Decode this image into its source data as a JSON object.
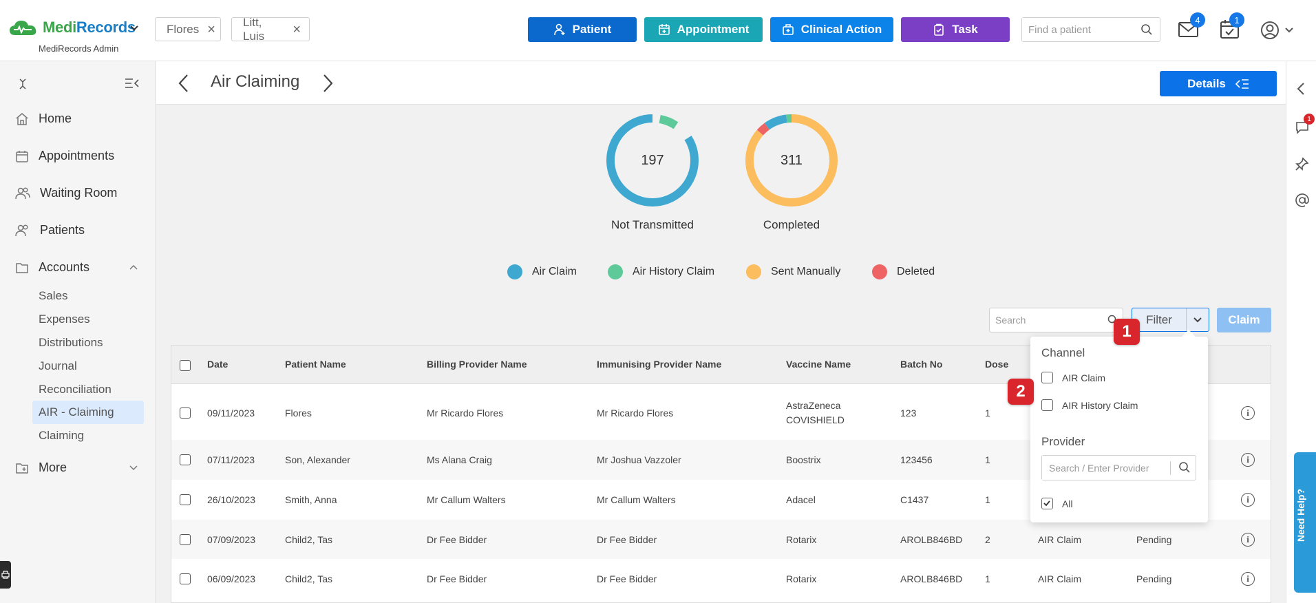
{
  "app": {
    "logo_prefix": "Medi",
    "logo_suffix": "Records",
    "subtitle": "MediRecords Admin"
  },
  "patient_tabs": [
    {
      "label": "Flores"
    },
    {
      "label": "Litt, Luis"
    }
  ],
  "header_buttons": {
    "patient": "Patient",
    "appointment": "Appointment",
    "clinical_action": "Clinical Action",
    "task": "Task"
  },
  "find_patient": {
    "placeholder": "Find a patient",
    "value": ""
  },
  "notifications": {
    "mail_count": "4",
    "calendar_count": "1"
  },
  "sidebar": {
    "items": [
      {
        "label": "Home"
      },
      {
        "label": "Appointments"
      },
      {
        "label": "Waiting Room"
      },
      {
        "label": "Patients"
      },
      {
        "label": "Accounts"
      }
    ],
    "accounts_sub": [
      {
        "label": "Sales"
      },
      {
        "label": "Expenses"
      },
      {
        "label": "Distributions"
      },
      {
        "label": "Journal"
      },
      {
        "label": "Reconciliation"
      },
      {
        "label": "AIR - Claiming"
      },
      {
        "label": "Claiming"
      }
    ],
    "more_label": "More"
  },
  "page": {
    "title": "Air Claiming",
    "details_label": "Details"
  },
  "summary": {
    "not_transmitted": {
      "count": "197",
      "label": "Not Transmitted"
    },
    "completed": {
      "count": "311",
      "label": "Completed"
    }
  },
  "chart_data": [
    {
      "type": "pie",
      "title": "Not Transmitted",
      "total": 197,
      "categories": [
        "Air Claim",
        "Air History Claim"
      ],
      "values": [
        184,
        13
      ]
    },
    {
      "type": "pie",
      "title": "Completed",
      "total": 311,
      "categories": [
        "Sent Manually",
        "Deleted",
        "Air Claim",
        "Air History Claim"
      ],
      "values": [
        269,
        11,
        25,
        6
      ]
    }
  ],
  "legend": [
    {
      "label": "Air Claim",
      "color": "#3fa8d0"
    },
    {
      "label": "Air History Claim",
      "color": "#5ec999"
    },
    {
      "label": "Sent Manually",
      "color": "#fbbd5e"
    },
    {
      "label": "Deleted",
      "color": "#ee6464"
    }
  ],
  "toolbar": {
    "search_placeholder": "Search",
    "filter_label": "Filter",
    "claim_label": "Claim"
  },
  "table": {
    "headers": {
      "date": "Date",
      "patient": "Patient Name",
      "billing": "Billing Provider Name",
      "immunising": "Immunising Provider Name",
      "vaccine": "Vaccine Name",
      "batch": "Batch No",
      "dose": "Dose"
    },
    "rows": [
      {
        "date": "09/11/2023",
        "patient": "Flores",
        "billing": "Mr Ricardo Flores",
        "immunising": "Mr Ricardo Flores",
        "vaccine_line1": "AstraZeneca",
        "vaccine_line2": "COVISHIELD",
        "batch": "123",
        "dose": "1",
        "channel": "",
        "status": ""
      },
      {
        "date": "07/11/2023",
        "patient": "Son, Alexander",
        "billing": "Ms Alana Craig",
        "immunising": "Mr Joshua Vazzoler",
        "vaccine_line1": "Boostrix",
        "vaccine_line2": "",
        "batch": "123456",
        "dose": "1",
        "channel": "",
        "status": ""
      },
      {
        "date": "26/10/2023",
        "patient": "Smith, Anna",
        "billing": "Mr Callum Walters",
        "immunising": "Mr Callum Walters",
        "vaccine_line1": "Adacel",
        "vaccine_line2": "",
        "batch": "C1437",
        "dose": "1",
        "channel": "",
        "status": ""
      },
      {
        "date": "07/09/2023",
        "patient": "Child2, Tas",
        "billing": "Dr Fee Bidder",
        "immunising": "Dr Fee Bidder",
        "vaccine_line1": "Rotarix",
        "vaccine_line2": "",
        "batch": "AROLB846BD",
        "dose": "2",
        "channel": "AIR Claim",
        "status": "Pending"
      },
      {
        "date": "06/09/2023",
        "patient": "Child2, Tas",
        "billing": "Dr Fee Bidder",
        "immunising": "Dr Fee Bidder",
        "vaccine_line1": "Rotarix",
        "vaccine_line2": "",
        "batch": "AROLB846BD",
        "dose": "1",
        "channel": "AIR Claim",
        "status": "Pending"
      }
    ]
  },
  "filter_popup": {
    "channel_heading": "Channel",
    "channel_options": [
      {
        "label": "AIR Claim",
        "checked": false
      },
      {
        "label": "AIR History Claim",
        "checked": false
      }
    ],
    "provider_heading": "Provider",
    "provider_placeholder": "Search / Enter Provider",
    "all_label": "All",
    "all_checked": true
  },
  "steps": {
    "one": "1",
    "two": "2"
  },
  "right_rail": {
    "chat_badge": "1",
    "need_help": "Need Help?"
  }
}
